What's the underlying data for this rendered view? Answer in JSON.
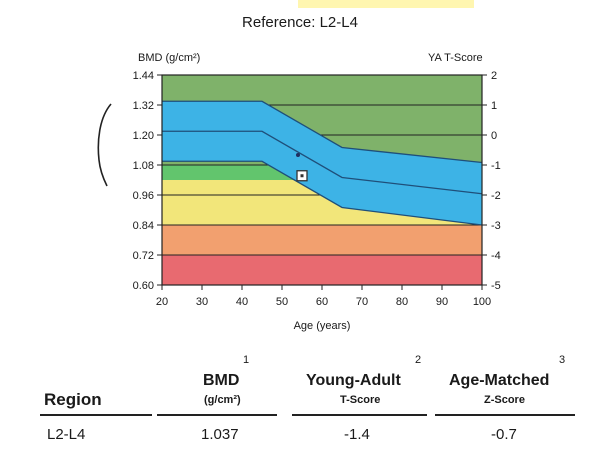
{
  "chart_data": {
    "type": "area",
    "title": "Reference: L2-L4",
    "xlabel": "Age (years)",
    "ylabel": "BMD (g/cm²)",
    "y2label": "YA T-Score",
    "xlim": [
      20,
      100
    ],
    "ylim": [
      0.6,
      1.44
    ],
    "x_ticks": [
      20,
      30,
      40,
      50,
      60,
      70,
      80,
      90,
      100
    ],
    "y_ticks": [
      "0.60",
      "0.72",
      "0.84",
      "0.96",
      "1.08",
      "1.20",
      "1.32",
      "1.44"
    ],
    "y2_ticks": [
      "-5",
      "-4",
      "-3",
      "-2",
      "-1",
      "0",
      "1",
      "2"
    ],
    "zones": [
      {
        "name": "normal",
        "color": "#7fb26a",
        "from": 1.08,
        "to": 1.44
      },
      {
        "name": "low",
        "color": "#62c56d",
        "from": 1.02,
        "to": 1.08
      },
      {
        "name": "osteopenia",
        "color": "#f2e67a",
        "from": 0.84,
        "to": 1.02
      },
      {
        "name": "moderate",
        "color": "#f2a06f",
        "from": 0.72,
        "to": 0.84
      },
      {
        "name": "osteoporosis",
        "color": "#e86a70",
        "from": 0.6,
        "to": 0.72
      }
    ],
    "reference_band": {
      "color": "#3db3e6",
      "age": [
        20,
        45,
        65,
        100
      ],
      "upper": [
        1.335,
        1.335,
        1.15,
        1.09
      ],
      "mean": [
        1.215,
        1.215,
        1.03,
        0.965
      ],
      "lower": [
        1.095,
        1.095,
        0.91,
        0.84
      ]
    },
    "patient_point": {
      "age": 55,
      "bmd": 1.037
    },
    "center_marker": {
      "age": 54,
      "bmd": 1.12
    }
  },
  "results": {
    "headers": {
      "region": "Region",
      "bmd": "BMD",
      "bmd_unit": "(g/cm²)",
      "ya": "Young-Adult",
      "ya_sub": "T-Score",
      "am": "Age-Matched",
      "am_sub": "Z-Score",
      "bmd_note": "1",
      "ya_note": "2",
      "am_note": "3"
    },
    "rows": [
      {
        "region": "L2-L4",
        "bmd": "1.037",
        "t_score": "-1.4",
        "z_score": "-0.7"
      }
    ]
  },
  "colors": {
    "band_line": "#1f4f7a",
    "grid": "#222222"
  }
}
